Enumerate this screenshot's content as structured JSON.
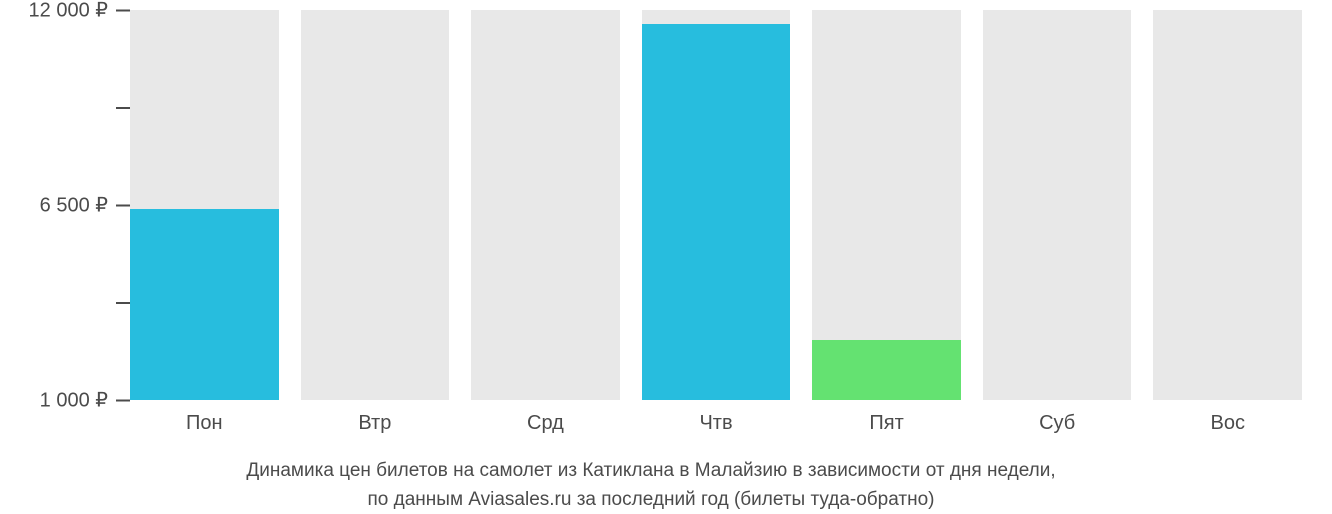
{
  "chart": {
    "type": "bar",
    "background_color": "#ffffff",
    "bar_bg_color": "#e8e8e8",
    "tick_color": "#4b4b4b",
    "text_color": "#4b4b4b",
    "label_fontsize": 20,
    "caption_fontsize": 19,
    "y_min": 1000,
    "y_max": 12000,
    "y_ticks": [
      {
        "value": 12000,
        "label": "12 000 ₽"
      },
      {
        "value": 6500,
        "label": "6 500 ₽"
      },
      {
        "value": 1000,
        "label": "1 000 ₽"
      }
    ],
    "minor_tick_count_between": 1,
    "bars": [
      {
        "label": "Пон",
        "value": 6400,
        "color": "#27bdde"
      },
      {
        "label": "Втр",
        "value": null,
        "color": "#27bdde"
      },
      {
        "label": "Срд",
        "value": null,
        "color": "#27bdde"
      },
      {
        "label": "Чтв",
        "value": 11600,
        "color": "#27bdde"
      },
      {
        "label": "Пят",
        "value": 2700,
        "color": "#64e271"
      },
      {
        "label": "Суб",
        "value": null,
        "color": "#27bdde"
      },
      {
        "label": "Вос",
        "value": null,
        "color": "#27bdde"
      }
    ],
    "caption_line1": "Динамика цен билетов на самолет из Катиклана в Малайзию в зависимости от дня недели,",
    "caption_line2": "по данным Aviasales.ru за последний год (билеты туда-обратно)"
  }
}
